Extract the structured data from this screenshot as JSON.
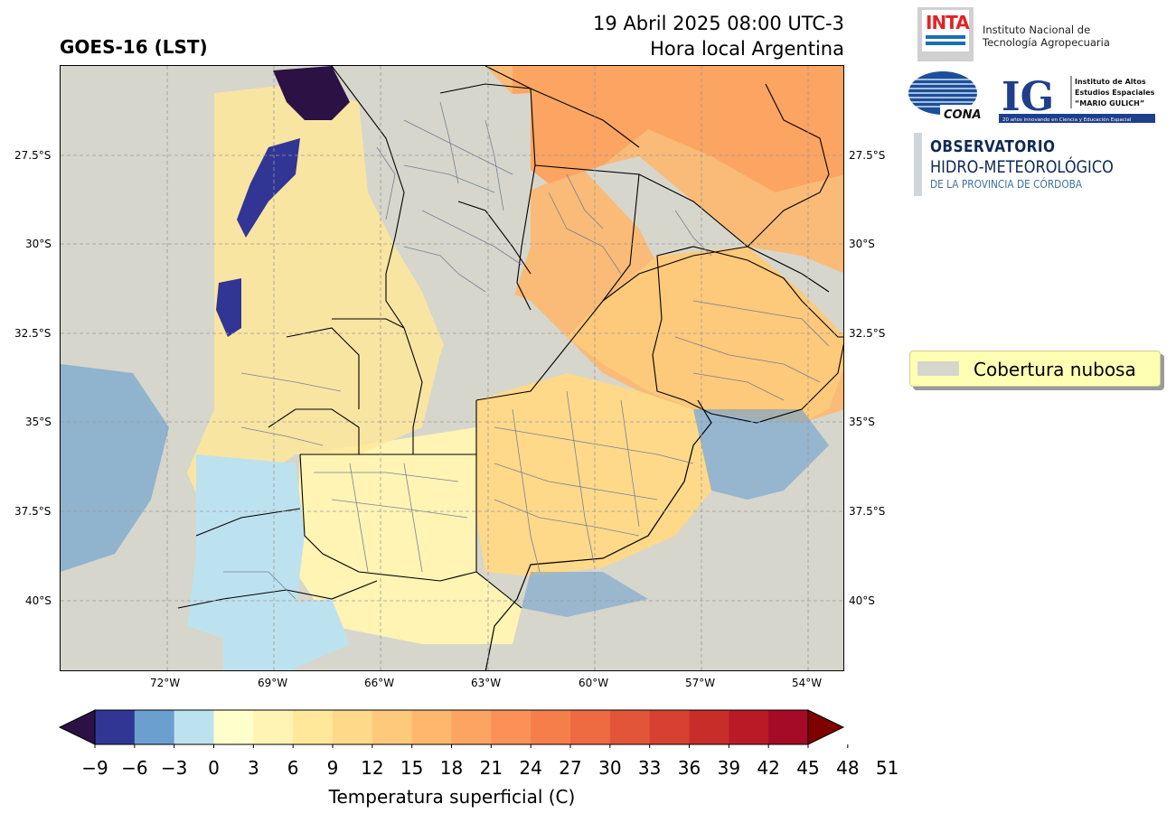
{
  "header": {
    "product": "GOES-16 (LST)",
    "datetime": "19 Abril 2025 08:00 UTC-3",
    "local_time_note": "Hora local Argentina"
  },
  "map": {
    "lat_ticks": [
      "27.5°S",
      "30°S",
      "32.5°S",
      "35°S",
      "37.5°S",
      "40°S"
    ],
    "lon_ticks": [
      "72°W",
      "69°W",
      "66°W",
      "63°W",
      "60°W",
      "57°W",
      "54°W"
    ],
    "background_color": "#d6d6cc"
  },
  "legend": {
    "label": "Cobertura nubosa",
    "swatch_color": "#d6d6cc"
  },
  "colorbar": {
    "label": "Temperatura superficial (C)",
    "ticks": [
      "−9",
      "−6",
      "−3",
      "0",
      "3",
      "6",
      "9",
      "12",
      "15",
      "18",
      "21",
      "24",
      "27",
      "30",
      "33",
      "36",
      "39",
      "42",
      "45",
      "48",
      "51"
    ],
    "colors": [
      "#313695",
      "#6a9fd0",
      "#bde2ef",
      "#ffffcc",
      "#fff4b4",
      "#ffe89a",
      "#fed98a",
      "#fdc97b",
      "#fdb86e",
      "#fca462",
      "#fb9157",
      "#f67e4b",
      "#ee6a41",
      "#e35539",
      "#d74131",
      "#c92d29",
      "#ba1a25",
      "#a50a26"
    ],
    "under_color": "#2c1145",
    "over_color": "#7f0000"
  },
  "logos": {
    "inta_word": "INTA",
    "inta_line1": "Instituto Nacional de",
    "inta_line2": "Tecnología Agropecuaria",
    "conae_word": "CONAE",
    "ig_letters": "IG",
    "ig_line1": "Instituto de Altos",
    "ig_line2": "Estudios Espaciales",
    "ig_line3": "“MARIO GULICH”",
    "ig_footer": "20 años innovando en Ciencia y Educación Espacial",
    "obs_line1": "OBSERVATORIO",
    "obs_line2": "HIDRO-METEOROLÓGICO",
    "obs_line3": "DE LA PROVINCIA DE CÓRDOBA"
  }
}
